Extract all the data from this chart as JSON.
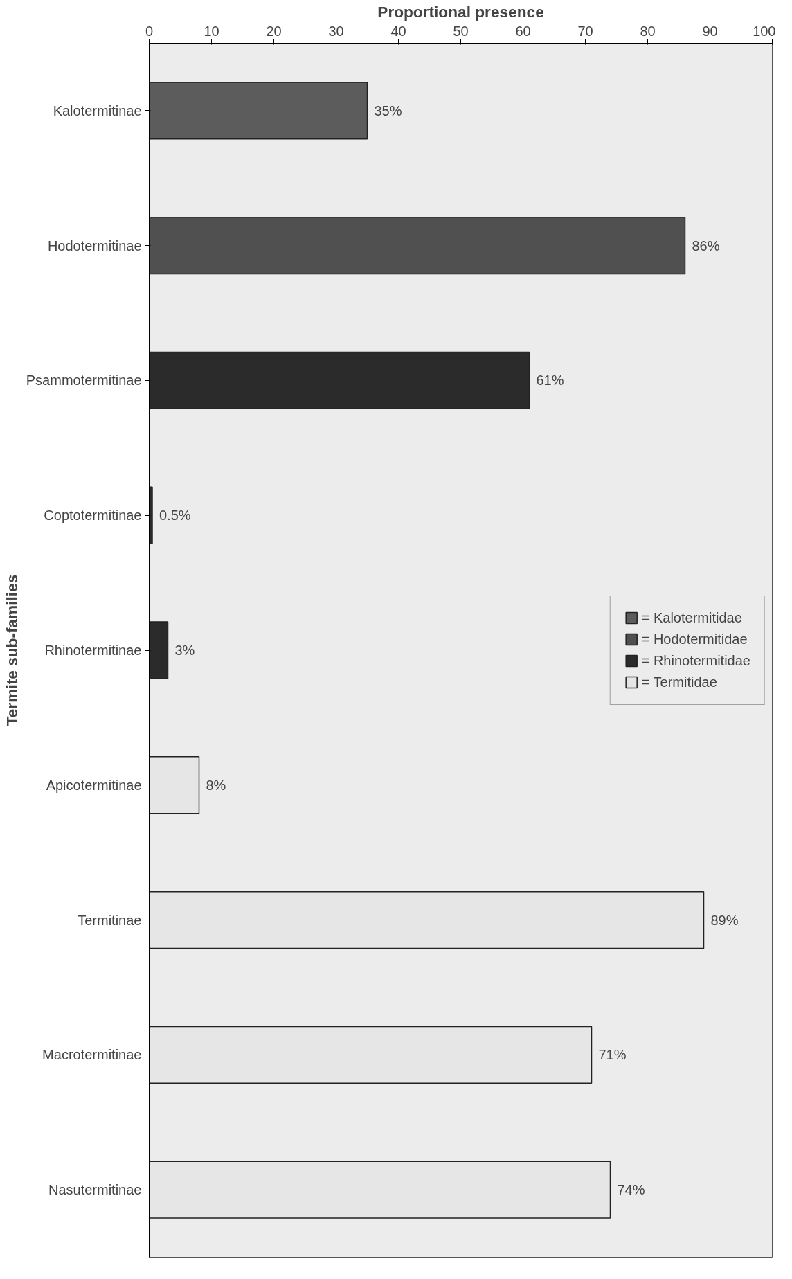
{
  "chart_data": {
    "type": "bar",
    "orientation": "horizontal",
    "xlabel": "Proportional presence",
    "ylabel": "Termite sub-families",
    "categories": [
      "Kalotermitinae",
      "Hodotermitinae",
      "Psammotermitinae",
      "Coptotermitinae",
      "Rhinotermitinae",
      "Apicotermitinae",
      "Termitinae",
      "Macrotermitinae",
      "Nasutermitinae"
    ],
    "series": [
      {
        "name": "= Kalotermitidae",
        "color": "#5c5c5c",
        "values": [
          35,
          null,
          null,
          null,
          null,
          null,
          null,
          null,
          null
        ],
        "value_labels": [
          "35%",
          null,
          null,
          null,
          null,
          null,
          null,
          null,
          null
        ]
      },
      {
        "name": "= Hodotermitidae",
        "color": "#505050",
        "values": [
          null,
          86,
          null,
          null,
          null,
          null,
          null,
          null,
          null
        ],
        "value_labels": [
          null,
          "86%",
          null,
          null,
          null,
          null,
          null,
          null,
          null
        ]
      },
      {
        "name": "= Rhinotermitidae",
        "color": "#2b2b2b",
        "values": [
          null,
          null,
          61,
          0.5,
          3,
          null,
          null,
          null,
          null
        ],
        "value_labels": [
          null,
          null,
          "61%",
          "0.5%",
          "3%",
          null,
          null,
          null,
          null
        ]
      },
      {
        "name": "= Termitidae",
        "color": "#e6e6e6",
        "values": [
          null,
          null,
          null,
          null,
          null,
          8,
          89,
          71,
          74
        ],
        "value_labels": [
          null,
          null,
          null,
          null,
          null,
          "8%",
          "89%",
          "71%",
          "74%"
        ]
      }
    ],
    "xlim": [
      0,
      100
    ],
    "xticks": [
      0,
      10,
      20,
      30,
      40,
      50,
      60,
      70,
      80,
      90,
      100
    ],
    "legend": "right",
    "grid": false
  }
}
